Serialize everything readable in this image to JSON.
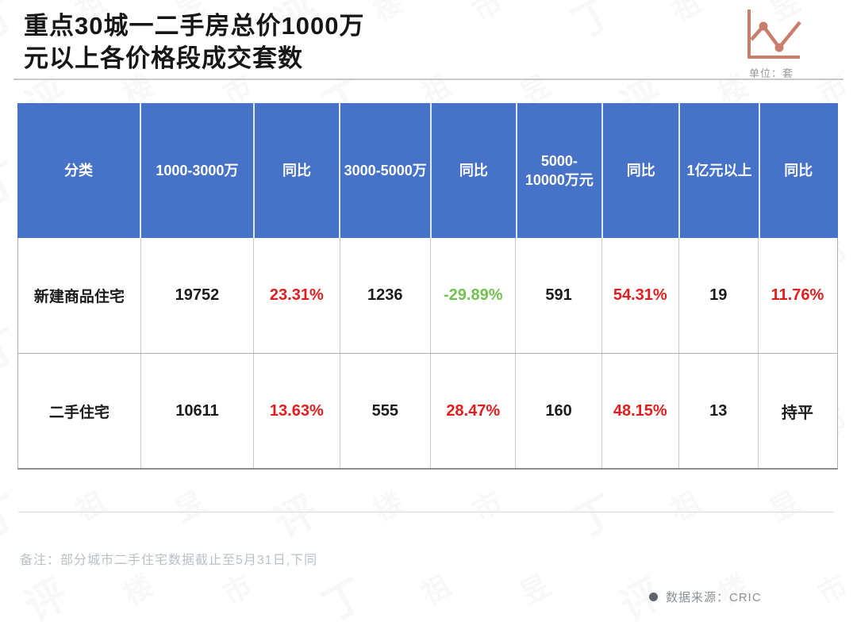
{
  "title": {
    "line1": "重点30城一二手房总价1000万",
    "line2": "元以上各价格段成交套数"
  },
  "unit_label": "单位：套",
  "table": {
    "headers": [
      "分类",
      "1000-3000万",
      "同比",
      "3000-5000万",
      "同比",
      "5000-\n10000万元",
      "同比",
      "1亿元以上",
      "同比"
    ],
    "rows": [
      {
        "cells": [
          {
            "text": "新建商品住宅",
            "color": "black"
          },
          {
            "text": "19752",
            "color": "black"
          },
          {
            "text": "23.31%",
            "color": "red"
          },
          {
            "text": "1236",
            "color": "black"
          },
          {
            "text": "-29.89%",
            "color": "green"
          },
          {
            "text": "591",
            "color": "black"
          },
          {
            "text": "54.31%",
            "color": "red"
          },
          {
            "text": "19",
            "color": "black"
          },
          {
            "text": "11.76%",
            "color": "red"
          }
        ]
      },
      {
        "cells": [
          {
            "text": "二手住宅",
            "color": "black"
          },
          {
            "text": "10611",
            "color": "black"
          },
          {
            "text": "13.63%",
            "color": "red"
          },
          {
            "text": "555",
            "color": "black"
          },
          {
            "text": "28.47%",
            "color": "red"
          },
          {
            "text": "160",
            "color": "black"
          },
          {
            "text": "48.15%",
            "color": "red"
          },
          {
            "text": "13",
            "color": "black"
          },
          {
            "text": "持平",
            "color": "black"
          }
        ]
      }
    ]
  },
  "note": "备注：部分城市二手住宅数据截止至5月31日,下同",
  "source_label": "数据来源：CRIC",
  "watermark_chars": [
    "丁",
    "祖",
    "昱",
    "评",
    "楼",
    "市"
  ],
  "colors": {
    "header_bg": "#4672c8",
    "up_red": "#e01e1e",
    "down_green": "#74c053",
    "icon_accent": "#c97e6d",
    "title_text": "#161616",
    "note_text": "#b9c0c7"
  },
  "chart_data": {
    "type": "table",
    "title": "重点30城一二手房总价1000万元以上各价格段成交套数",
    "unit": "套",
    "columns": [
      "分类",
      "1000-3000万",
      "同比",
      "3000-5000万",
      "同比",
      "5000-10000万元",
      "同比",
      "1亿元以上",
      "同比"
    ],
    "rows": [
      [
        "新建商品住宅",
        19752,
        "23.31%",
        1236,
        "-29.89%",
        591,
        "54.31%",
        19,
        "11.76%"
      ],
      [
        "二手住宅",
        10611,
        "13.63%",
        555,
        "28.47%",
        160,
        "48.15%",
        13,
        "持平"
      ]
    ],
    "note": "备注：部分城市二手住宅数据截止至5月31日,下同",
    "source": "CRIC"
  }
}
